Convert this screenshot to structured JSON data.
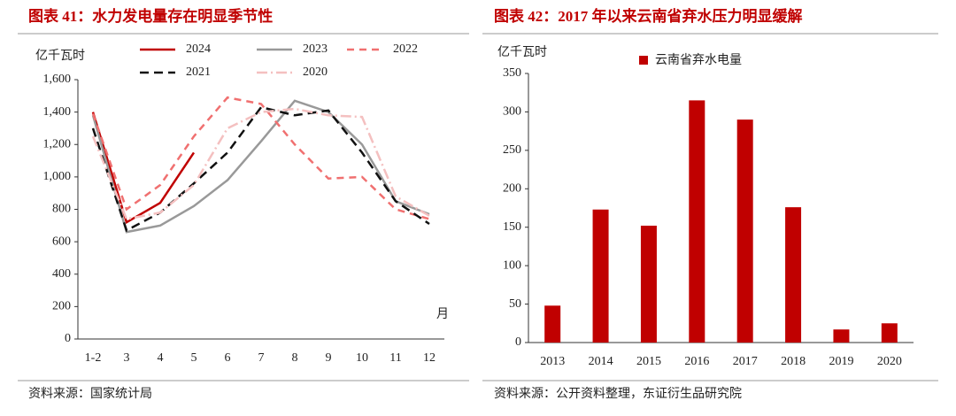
{
  "chart_data": [
    {
      "type": "line",
      "title": "图表 41：水力发电量存在明显季节性",
      "y_label": "亿千瓦时",
      "x_label": "月",
      "source": "资料来源：国家统计局",
      "categories": [
        "1-2",
        "3",
        "4",
        "5",
        "6",
        "7",
        "8",
        "9",
        "10",
        "11",
        "12"
      ],
      "ylim": [
        0,
        1600
      ],
      "yticks": [
        0,
        200,
        400,
        600,
        800,
        {
          "value": 1000,
          "label": "1,000"
        },
        {
          "value": 1200,
          "label": "1,200"
        },
        {
          "value": 1400,
          "label": "1,400"
        },
        {
          "value": 1600,
          "label": "1,600"
        }
      ],
      "series": [
        {
          "name": "2024",
          "color": "#c00000",
          "values": [
            1400,
            720,
            840,
            1150,
            null,
            null,
            null,
            null,
            null,
            null,
            null
          ]
        },
        {
          "name": "2023",
          "color": "#999999",
          "values": [
            1380,
            660,
            700,
            820,
            980,
            1220,
            1470,
            1400,
            1200,
            850,
            770
          ]
        },
        {
          "name": "2022",
          "color": "#f07070",
          "values": [
            1390,
            800,
            950,
            1250,
            1490,
            1450,
            1200,
            990,
            1000,
            800,
            740
          ]
        },
        {
          "name": "2021",
          "color": "#111111",
          "values": [
            1300,
            670,
            780,
            960,
            1150,
            1430,
            1380,
            1410,
            1150,
            850,
            710
          ]
        },
        {
          "name": "2020",
          "color": "#f4c0c0",
          "values": [
            1250,
            740,
            780,
            950,
            1300,
            1400,
            1420,
            1380,
            1370,
            880,
            760
          ]
        }
      ]
    },
    {
      "type": "bar",
      "title": "图表 42：2017 年以来云南省弃水压力明显缓解",
      "y_label": "亿千瓦时",
      "source": "资料来源：公开资料整理，东证衍生品研究院",
      "categories": [
        "2013",
        "2014",
        "2015",
        "2016",
        "2017",
        "2018",
        "2019",
        "2020"
      ],
      "ylim": [
        0,
        350
      ],
      "yticks": [
        0,
        50,
        100,
        150,
        200,
        250,
        300,
        350
      ],
      "series": [
        {
          "name": "云南省弃水电量",
          "color": "#c00000",
          "values": [
            48,
            173,
            152,
            315,
            290,
            176,
            17,
            25
          ]
        }
      ]
    }
  ]
}
